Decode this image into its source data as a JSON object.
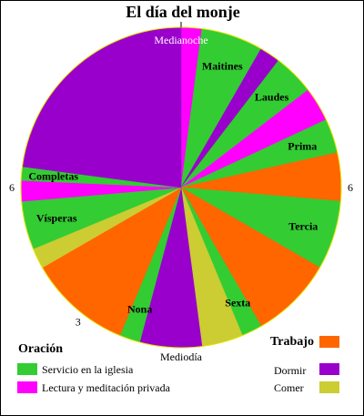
{
  "chart_data": {
    "type": "pie",
    "title": "El día del monje",
    "unit": "hours",
    "total": 24,
    "start_angle_deg": 0,
    "direction": "clockwise",
    "hour_labels": [
      {
        "text": "Medianoche",
        "hour": 0,
        "tick": true,
        "position": "inside"
      },
      {
        "text": "6",
        "hour": 6,
        "tick": false,
        "position": "outside"
      },
      {
        "text": "Mediodía",
        "hour": 12,
        "tick": false,
        "position": "outside"
      },
      {
        "text": "3",
        "hour": 14.5,
        "tick": false,
        "position": "outside"
      },
      {
        "text": "6",
        "hour": 18,
        "tick": false,
        "position": "outside"
      }
    ],
    "categories": [
      {
        "key": "servicio",
        "name": "Servicio en la iglesia",
        "color": "#33cc33"
      },
      {
        "key": "lectura",
        "name": "Lectura y meditación privada",
        "color": "#ff00ff"
      },
      {
        "key": "trabajo",
        "name": "Trabajo",
        "color": "#ff6600"
      },
      {
        "key": "dormir",
        "name": "Dormir",
        "color": "#9900cc"
      },
      {
        "key": "comer",
        "name": "Comer",
        "color": "#cccc33"
      }
    ],
    "slices": [
      {
        "category": "lectura",
        "hours": 0.5
      },
      {
        "category": "servicio",
        "hours": 1.5,
        "label": "Maitines"
      },
      {
        "category": "dormir",
        "hours": 0.5
      },
      {
        "category": "servicio",
        "hours": 1.0,
        "label": "Laudes"
      },
      {
        "category": "lectura",
        "hours": 0.83
      },
      {
        "category": "servicio",
        "hours": 0.83,
        "label": "Prima"
      },
      {
        "category": "trabajo",
        "hours": 1.17
      },
      {
        "category": "servicio",
        "hours": 1.67,
        "label": "Tercia"
      },
      {
        "category": "trabajo",
        "hours": 2.0
      },
      {
        "category": "servicio",
        "hours": 0.5,
        "label": "Sexta"
      },
      {
        "category": "comer",
        "hours": 1.0
      },
      {
        "category": "dormir",
        "hours": 1.5
      },
      {
        "category": "servicio",
        "hours": 0.5,
        "label": "Nona"
      },
      {
        "category": "trabajo",
        "hours": 2.5
      },
      {
        "category": "comer",
        "hours": 0.5
      },
      {
        "category": "servicio",
        "hours": 1.17,
        "label": "Vísperas"
      },
      {
        "category": "lectura",
        "hours": 0.5
      },
      {
        "category": "servicio",
        "hours": 0.33,
        "label": "Completas"
      },
      {
        "category": "dormir",
        "hours": 5.5
      }
    ],
    "legend": {
      "oracion_heading": "Oración",
      "oracion_items": [
        "servicio",
        "lectura"
      ],
      "trabajo_heading": "Trabajo",
      "other_items": [
        "dormir",
        "comer"
      ]
    }
  }
}
